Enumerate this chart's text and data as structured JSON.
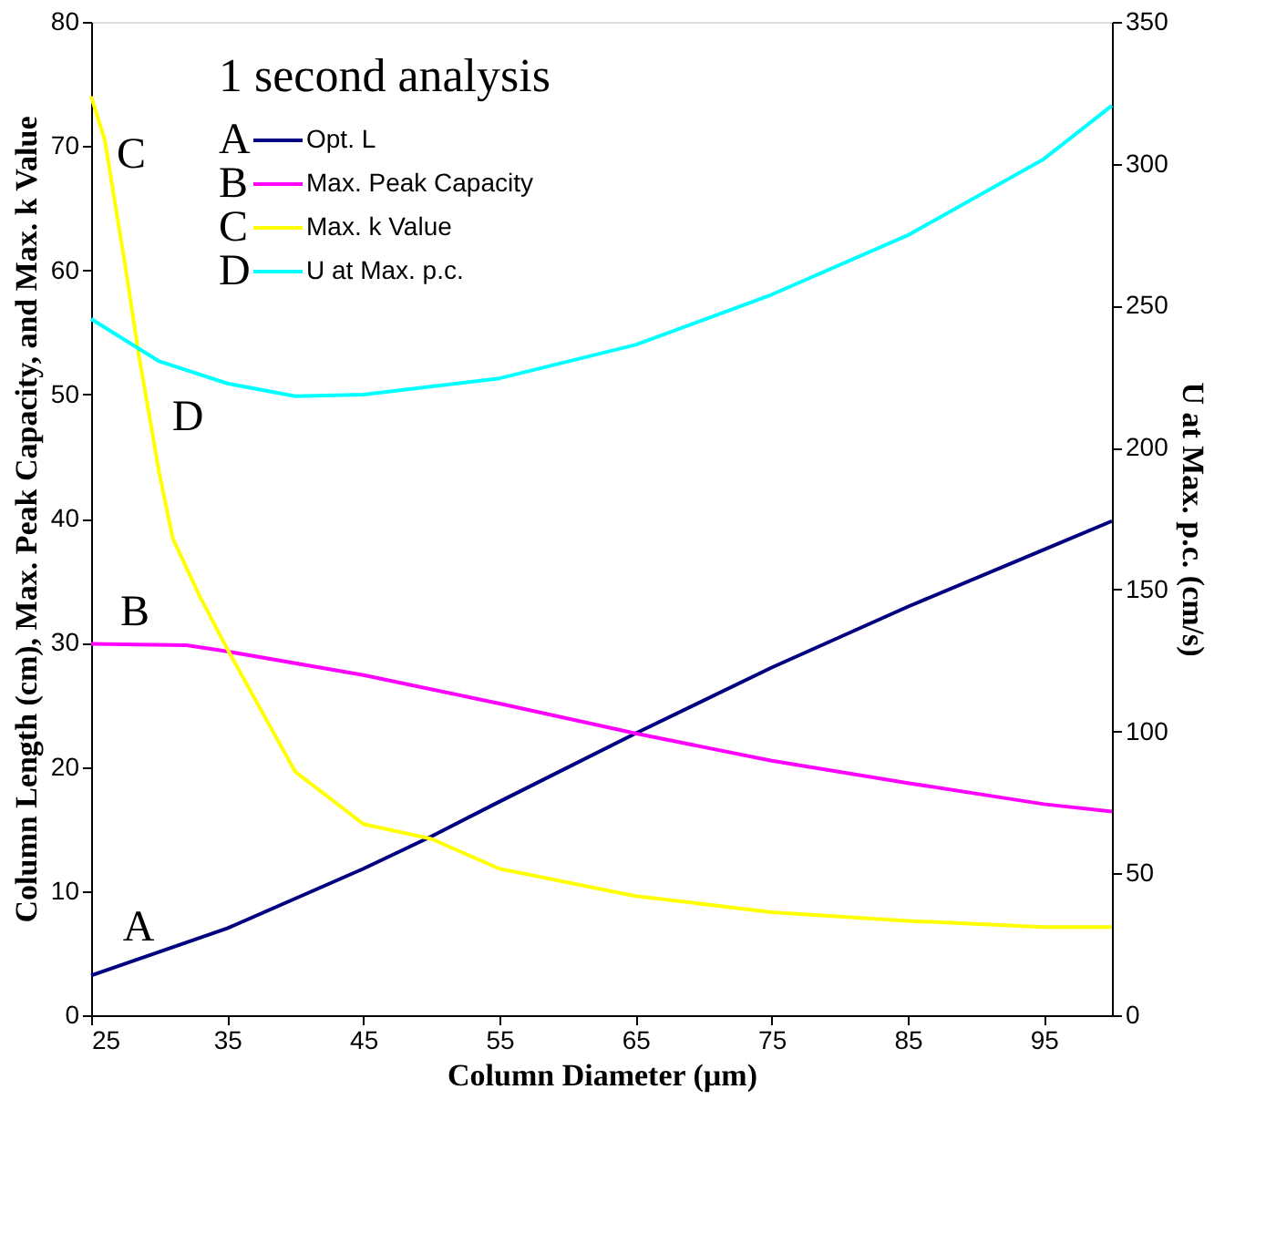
{
  "chart_data": {
    "type": "line",
    "xlabel": "Column Diameter (µm)",
    "ylabel": "Column Length (cm), Max. Peak Capacity, and Max. k Value",
    "y2label": "U at Max. p.c. (cm/s)",
    "legend_title": "1 second analysis",
    "legend": "top left",
    "grid": false,
    "marker": "none",
    "line_style": "solid",
    "xlim": [
      25,
      100
    ],
    "xticks": [
      25,
      35,
      45,
      55,
      65,
      75,
      85,
      95
    ],
    "ylim": [
      0,
      80
    ],
    "yticks": [
      0,
      10,
      20,
      30,
      40,
      50,
      60,
      70,
      80
    ],
    "y2lim": [
      0,
      350
    ],
    "y2ticks": [
      0,
      50,
      100,
      150,
      200,
      250,
      300,
      350
    ],
    "series": [
      {
        "name": "Opt. L",
        "color": "#000080",
        "x": [
          25,
          35,
          45,
          50,
          55,
          65,
          75,
          85,
          95,
          100
        ],
        "values": [
          3.2,
          7.0,
          11.8,
          14.4,
          17.2,
          22.7,
          28.0,
          32.9,
          37.5,
          39.8
        ]
      },
      {
        "name": "Max. Peak Capacity",
        "color": "#ff00ff",
        "x": [
          25,
          32,
          35,
          45,
          55,
          65,
          75,
          85,
          95,
          100
        ],
        "values": [
          29.9,
          29.8,
          29.3,
          27.4,
          25.1,
          22.7,
          20.5,
          18.7,
          17.0,
          16.4
        ]
      },
      {
        "name": "Max. k Value",
        "color": "#ffff00",
        "x": [
          25,
          26,
          27.5,
          28.5,
          30,
          31,
          33,
          35,
          40,
          45,
          50,
          55,
          65,
          75,
          85,
          95,
          100
        ],
        "values": [
          74.0,
          70.5,
          60.4,
          53.2,
          43.7,
          38.4,
          33.7,
          29.5,
          19.6,
          15.4,
          14.2,
          11.8,
          9.6,
          8.3,
          7.6,
          7.1,
          7.1
        ]
      },
      {
        "name": "U at Max. p.c.",
        "color": "#00ffff",
        "axis": "y2",
        "x": [
          25,
          30,
          35,
          40,
          45,
          55,
          65,
          75,
          85,
          95,
          100
        ],
        "values": [
          245.3,
          230.4,
          222.6,
          218.1,
          218.7,
          224.4,
          236.2,
          253.9,
          274.8,
          301.7,
          320.5
        ]
      }
    ],
    "annotations": [
      "A",
      "B",
      "C",
      "D"
    ]
  }
}
